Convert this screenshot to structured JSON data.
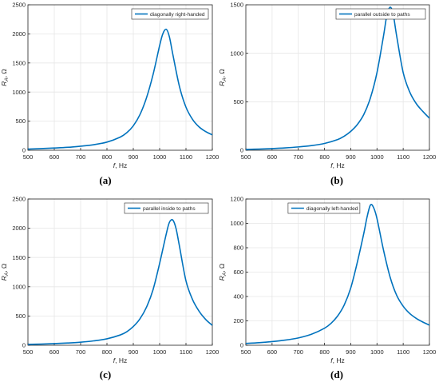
{
  "chart_data": [
    {
      "type": "line",
      "panel": "(a)",
      "xlabel_italic": "f",
      "xlabel_rest": ", Hz",
      "ylabel_sub": "A",
      "ylabel_rest": ", Ω",
      "xlim": [
        500,
        1200
      ],
      "ylim": [
        0,
        2500
      ],
      "xticks": [
        500,
        600,
        700,
        800,
        900,
        1000,
        1100,
        1200
      ],
      "yticks": [
        0,
        500,
        1000,
        1500,
        2000,
        2500
      ],
      "grid": true,
      "legend_position": "top-right",
      "series": [
        {
          "name": "diagonally right-handed",
          "x": [
            500,
            550,
            600,
            650,
            700,
            750,
            800,
            850,
            875,
            900,
            925,
            950,
            975,
            1000,
            1012,
            1025,
            1037,
            1050,
            1075,
            1100,
            1125,
            1150,
            1175,
            1200
          ],
          "values": [
            20,
            28,
            38,
            50,
            70,
            95,
            140,
            225,
            300,
            420,
            610,
            900,
            1300,
            1800,
            2000,
            2080,
            1950,
            1650,
            1100,
            740,
            530,
            400,
            320,
            265
          ]
        }
      ]
    },
    {
      "type": "line",
      "panel": "(b)",
      "xlabel_italic": "f",
      "xlabel_rest": ", Hz",
      "ylabel_sub": "A",
      "ylabel_rest": ", Ω",
      "xlim": [
        500,
        1200
      ],
      "ylim": [
        0,
        1500
      ],
      "xticks": [
        500,
        600,
        700,
        800,
        900,
        1000,
        1100,
        1200
      ],
      "yticks": [
        0,
        500,
        1000,
        1500
      ],
      "grid": true,
      "legend_position": "top-right",
      "series": [
        {
          "name": "parallel outside to paths",
          "x": [
            500,
            550,
            600,
            650,
            700,
            750,
            800,
            850,
            875,
            900,
            925,
            950,
            975,
            1000,
            1025,
            1037,
            1050,
            1062,
            1075,
            1100,
            1125,
            1150,
            1175,
            1200
          ],
          "values": [
            8,
            12,
            17,
            24,
            34,
            48,
            70,
            110,
            145,
            195,
            265,
            370,
            540,
            800,
            1180,
            1380,
            1475,
            1400,
            1180,
            800,
            600,
            480,
            400,
            330
          ]
        }
      ]
    },
    {
      "type": "line",
      "panel": "(c)",
      "xlabel_italic": "f",
      "xlabel_rest": ", Hz",
      "ylabel_sub": "A",
      "ylabel_rest": ", Ω",
      "xlim": [
        500,
        1200
      ],
      "ylim": [
        0,
        2500
      ],
      "xticks": [
        500,
        600,
        700,
        800,
        900,
        1000,
        1100,
        1200
      ],
      "yticks": [
        0,
        500,
        1000,
        1500,
        2000,
        2500
      ],
      "grid": true,
      "legend_position": "top-right",
      "series": [
        {
          "name": "parallel inside to paths",
          "x": [
            500,
            550,
            600,
            650,
            700,
            750,
            800,
            850,
            875,
            900,
            925,
            950,
            975,
            1000,
            1025,
            1037,
            1050,
            1062,
            1075,
            1100,
            1125,
            1150,
            1175,
            1200
          ],
          "values": [
            15,
            20,
            28,
            38,
            52,
            75,
            110,
            175,
            230,
            320,
            450,
            650,
            950,
            1400,
            1900,
            2100,
            2140,
            2000,
            1700,
            1100,
            780,
            580,
            440,
            340
          ]
        }
      ]
    },
    {
      "type": "line",
      "panel": "(d)",
      "xlabel_italic": "f",
      "xlabel_rest": ", Hz",
      "ylabel_sub": "A",
      "ylabel_rest": ", Ω",
      "xlim": [
        500,
        1200
      ],
      "ylim": [
        0,
        1200
      ],
      "xticks": [
        500,
        600,
        700,
        800,
        900,
        1000,
        1100,
        1200
      ],
      "yticks": [
        0,
        200,
        400,
        600,
        800,
        1000,
        1200
      ],
      "grid": true,
      "legend_position": "top-left",
      "series": [
        {
          "name": "diagonally left-handed",
          "x": [
            500,
            550,
            600,
            650,
            700,
            750,
            800,
            825,
            850,
            875,
            900,
            925,
            950,
            962,
            975,
            987,
            1000,
            1025,
            1050,
            1075,
            1100,
            1125,
            1150,
            1175,
            1200
          ],
          "values": [
            15,
            21,
            30,
            42,
            60,
            90,
            140,
            180,
            240,
            330,
            470,
            680,
            920,
            1050,
            1150,
            1130,
            1040,
            780,
            560,
            410,
            320,
            260,
            220,
            190,
            165
          ]
        }
      ]
    }
  ],
  "colors": {
    "line": "#0072BD",
    "grid": "#e6e6e6",
    "axis": "#262626"
  }
}
